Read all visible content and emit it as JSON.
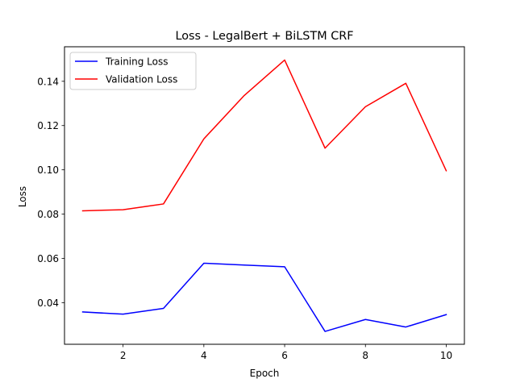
{
  "chart_data": {
    "type": "line",
    "title": "Loss - LegalBert + BiLSTM CRF",
    "xlabel": "Epoch",
    "ylabel": "Loss",
    "x": [
      1,
      2,
      3,
      4,
      5,
      6,
      7,
      8,
      9,
      10
    ],
    "xlim": [
      0.55,
      10.45
    ],
    "ylim": [
      0.0212,
      0.1556
    ],
    "xticks": [
      2,
      4,
      6,
      8,
      10
    ],
    "xtick_labels": [
      "2",
      "4",
      "6",
      "8",
      "10"
    ],
    "yticks": [
      0.04,
      0.06,
      0.08,
      0.1,
      0.12,
      0.14
    ],
    "ytick_labels": [
      "0.04",
      "0.06",
      "0.08",
      "0.10",
      "0.12",
      "0.14"
    ],
    "grid": false,
    "legend_position": "upper-left",
    "series": [
      {
        "name": "Training Loss",
        "color": "#0000ff",
        "values": [
          0.0358,
          0.0348,
          0.0374,
          0.0578,
          0.057,
          0.0562,
          0.027,
          0.0324,
          0.029,
          0.0346
        ]
      },
      {
        "name": "Validation Loss",
        "color": "#ff0000",
        "values": [
          0.0815,
          0.082,
          0.0846,
          0.114,
          0.1336,
          0.1496,
          0.1098,
          0.1285,
          0.1391,
          0.0996
        ]
      }
    ]
  }
}
